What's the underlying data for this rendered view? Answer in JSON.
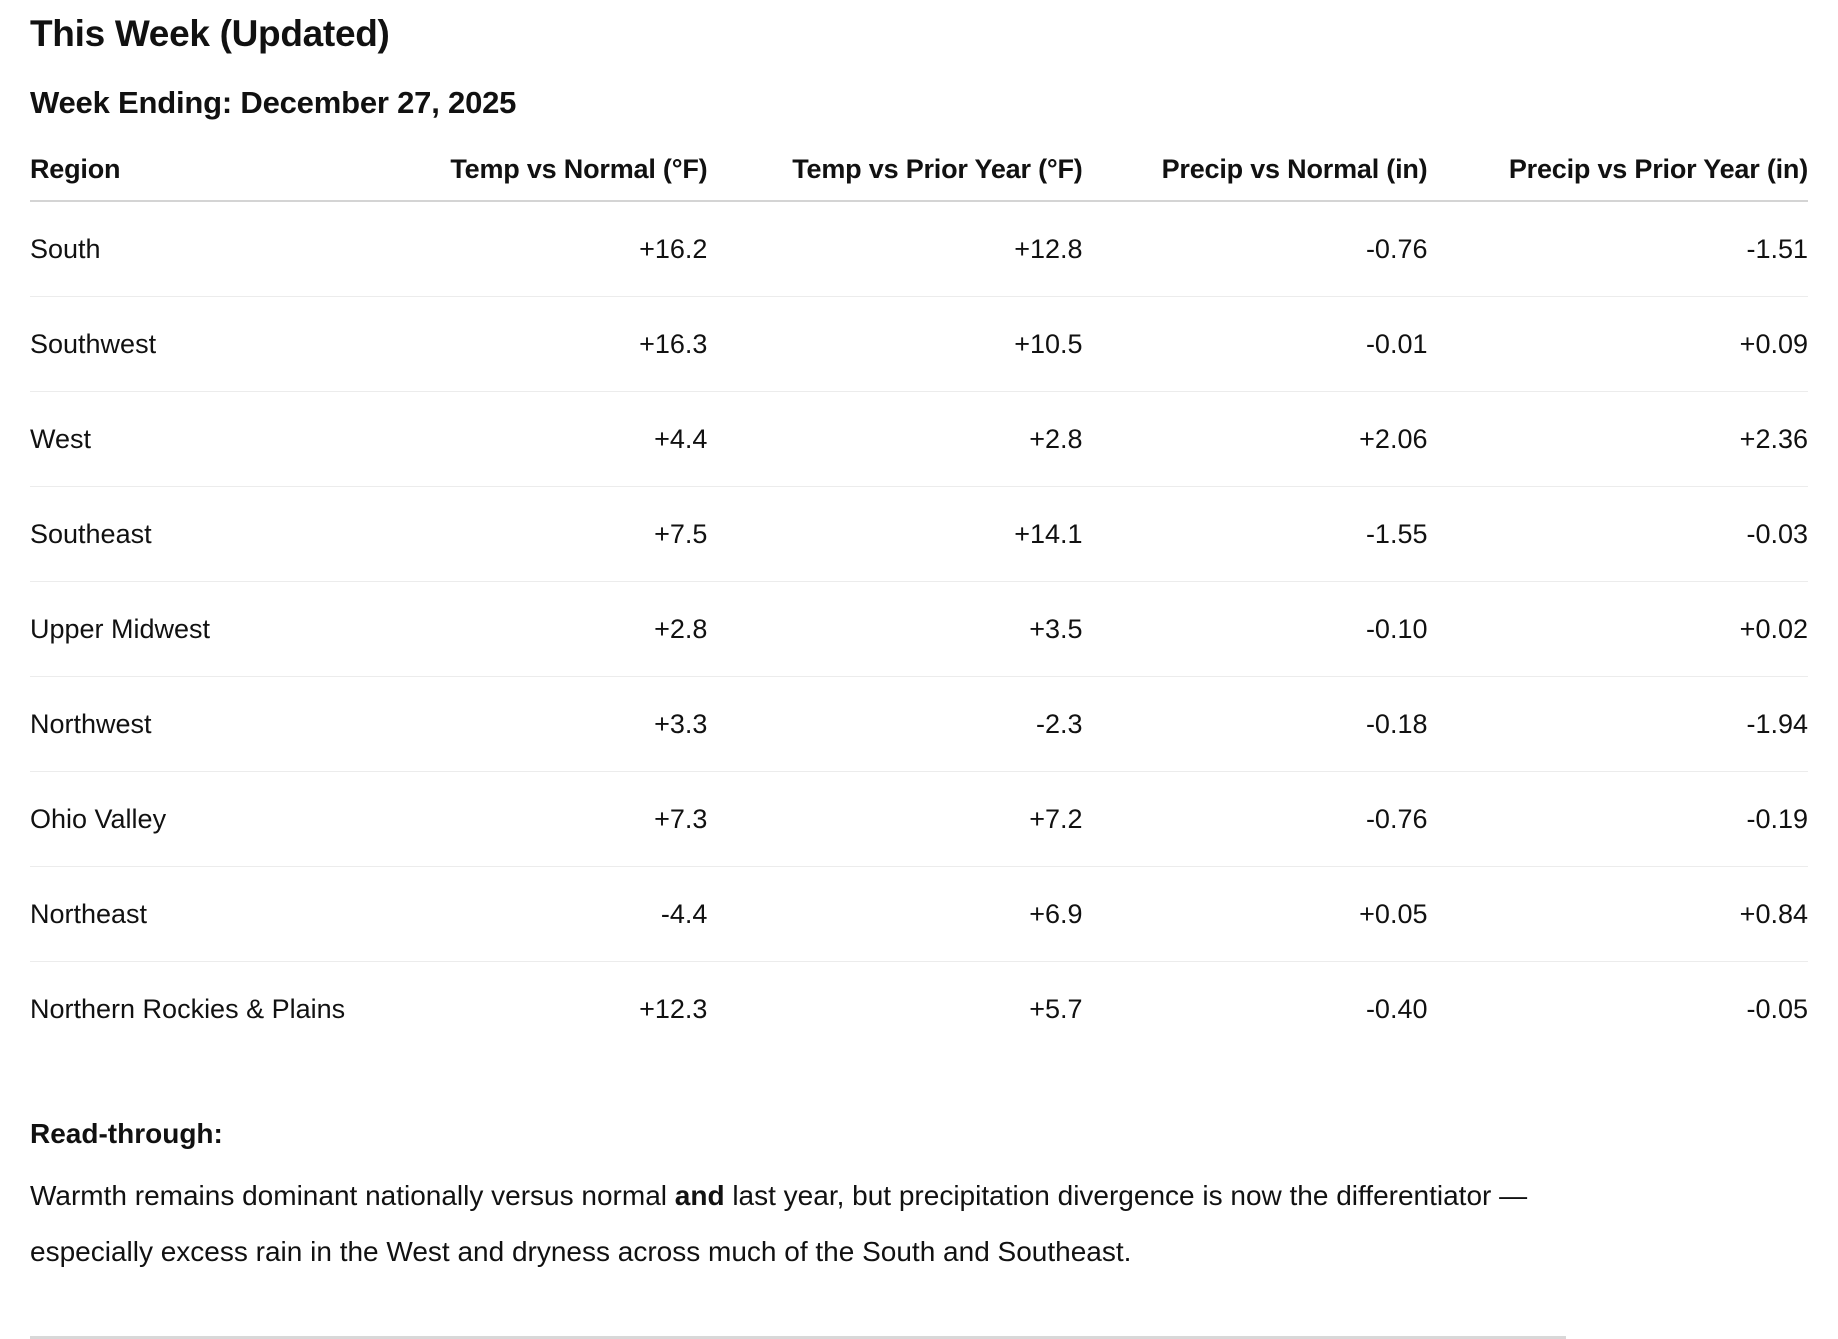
{
  "page": {
    "title": "This Week (Updated)",
    "subtitle": "Week Ending: December 27, 2025"
  },
  "table": {
    "columns": [
      "Region",
      "Temp vs Normal (°F)",
      "Temp vs Prior Year (°F)",
      "Precip vs Normal (in)",
      "Precip vs Prior Year (in)"
    ],
    "rows": [
      {
        "region": "South",
        "temp_vs_normal": "+16.2",
        "temp_vs_prior": "+12.8",
        "precip_vs_normal": "-0.76",
        "precip_vs_prior": "-1.51"
      },
      {
        "region": "Southwest",
        "temp_vs_normal": "+16.3",
        "temp_vs_prior": "+10.5",
        "precip_vs_normal": "-0.01",
        "precip_vs_prior": "+0.09"
      },
      {
        "region": "West",
        "temp_vs_normal": "+4.4",
        "temp_vs_prior": "+2.8",
        "precip_vs_normal": "+2.06",
        "precip_vs_prior": "+2.36"
      },
      {
        "region": "Southeast",
        "temp_vs_normal": "+7.5",
        "temp_vs_prior": "+14.1",
        "precip_vs_normal": "-1.55",
        "precip_vs_prior": "-0.03"
      },
      {
        "region": "Upper Midwest",
        "temp_vs_normal": "+2.8",
        "temp_vs_prior": "+3.5",
        "precip_vs_normal": "-0.10",
        "precip_vs_prior": "+0.02"
      },
      {
        "region": "Northwest",
        "temp_vs_normal": "+3.3",
        "temp_vs_prior": "-2.3",
        "precip_vs_normal": "-0.18",
        "precip_vs_prior": "-1.94"
      },
      {
        "region": "Ohio Valley",
        "temp_vs_normal": "+7.3",
        "temp_vs_prior": "+7.2",
        "precip_vs_normal": "-0.76",
        "precip_vs_prior": "-0.19"
      },
      {
        "region": "Northeast",
        "temp_vs_normal": "-4.4",
        "temp_vs_prior": "+6.9",
        "precip_vs_normal": "+0.05",
        "precip_vs_prior": "+0.84"
      },
      {
        "region": "Northern Rockies & Plains",
        "temp_vs_normal": "+12.3",
        "temp_vs_prior": "+5.7",
        "precip_vs_normal": "-0.40",
        "precip_vs_prior": "-0.05"
      }
    ]
  },
  "readthrough": {
    "heading": "Read-through:",
    "text_before_bold": "Warmth remains dominant nationally versus normal ",
    "bold_word": "and",
    "text_after_bold": " last year, but precipitation divergence is now the differentiator — especially excess rain in the West and dryness across much of the South and Southeast."
  }
}
